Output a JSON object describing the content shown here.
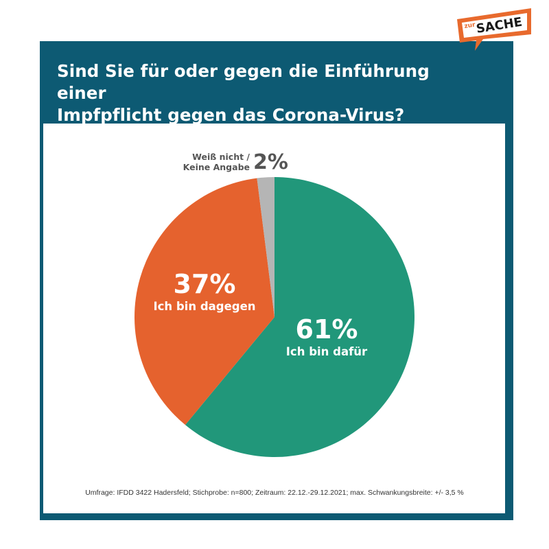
{
  "brand": {
    "logo_small": "zur",
    "logo_main": "SACHE"
  },
  "title_lines": [
    "Sind Sie für oder gegen die Einführung einer",
    "Impfpflicht gegen das Corona-Virus?"
  ],
  "footnote": "Umfrage: IFDD 3422 Hadersfeld; Stichprobe: n=800; Zeitraum: 22.12.-29.12.2021; max. Schwankungsbreite: +/- 3,5 %",
  "colors": {
    "frame": "#0d5a73",
    "dafuer": "#21977a",
    "dagegen": "#e5622e",
    "keine": "#b5b5b5",
    "logo": "#e86a2d"
  },
  "chart_data": {
    "type": "pie",
    "title": "Sind Sie für oder gegen die Einführung einer Impfpflicht gegen das Corona-Virus?",
    "unit": "%",
    "slices": [
      {
        "label": "Ich bin dafür",
        "value": 61,
        "value_label": "61%",
        "color": "#21977a"
      },
      {
        "label": "Ich bin dagegen",
        "value": 37,
        "value_label": "37%",
        "color": "#e5622e"
      },
      {
        "label_lines": [
          "Weiß nicht /",
          "Keine Angabe"
        ],
        "value": 2,
        "value_label": "2%",
        "color": "#b5b5b5"
      }
    ]
  }
}
